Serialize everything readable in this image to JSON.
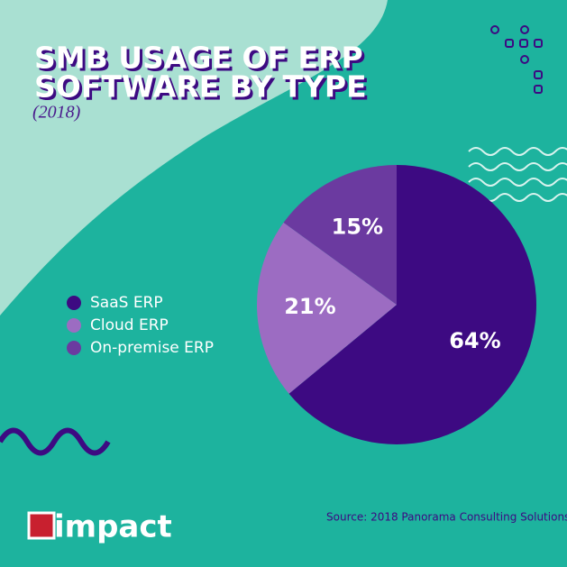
{
  "chart_data": {
    "type": "pie",
    "title": [
      "SMB USAGE OF ERP",
      "SOFTWARE BY TYPE"
    ],
    "subtitle": "(2018)",
    "categories": [
      "SaaS ERP",
      "Cloud ERP",
      "On-premise ERP"
    ],
    "values": [
      64,
      21,
      15
    ],
    "value_labels": [
      "64%",
      "21%",
      "15%"
    ],
    "colors": [
      "#3d0a82",
      "#9c6cc2",
      "#6b3aa0"
    ],
    "legend": "left",
    "source": "Source: 2018 Panorama Consulting Solutions"
  },
  "logo": "impact"
}
